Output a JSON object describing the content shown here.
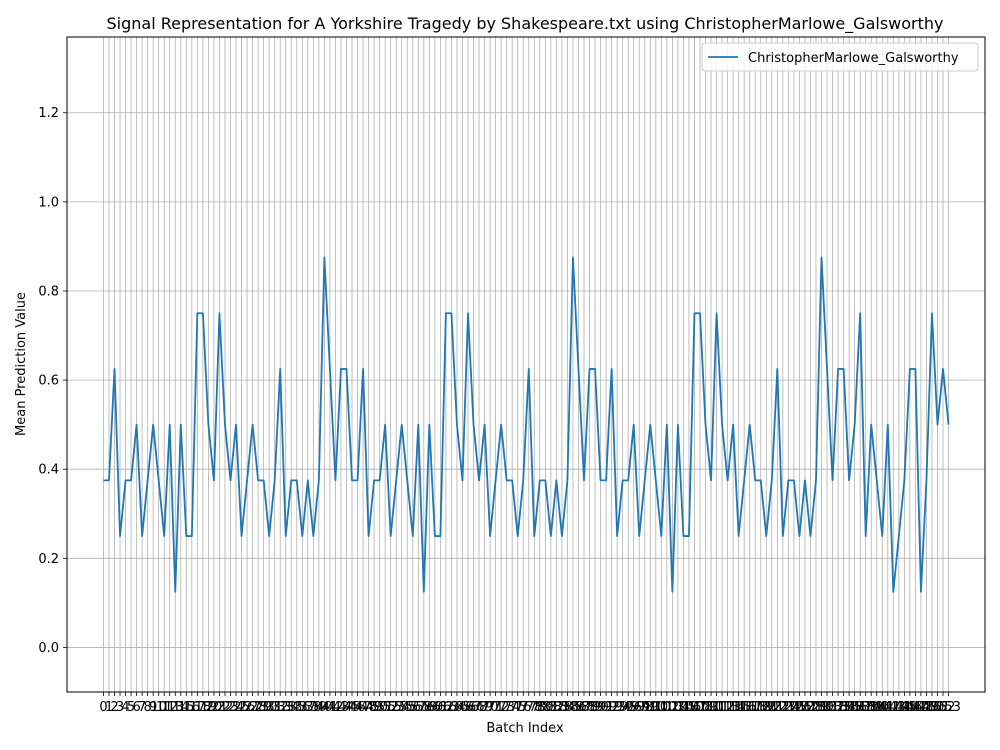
{
  "chart_data": {
    "type": "line",
    "title": "Signal Representation for A Yorkshire Tragedy by Shakespeare.txt using ChristopherMarlowe_Galsworthy",
    "xlabel": "Batch Index",
    "ylabel": "Mean Prediction Value",
    "xlim": [
      -6.6,
      159.6
    ],
    "ylim": [
      -0.1,
      1.37
    ],
    "yticks": [
      0.0,
      0.2,
      0.4,
      0.6,
      0.8,
      1.0,
      1.2
    ],
    "ytick_labels": [
      "0.0",
      "0.2",
      "0.4",
      "0.6",
      "0.8",
      "1.0",
      "1.2"
    ],
    "grid": true,
    "legend_position": "top-right",
    "series": [
      {
        "name": "ChristopherMarlowe_Galsworthy",
        "color": "#1f77b4",
        "values": [
          0.375,
          0.375,
          0.625,
          0.25,
          0.375,
          0.375,
          0.5,
          0.25,
          0.375,
          0.5,
          0.375,
          0.25,
          0.5,
          0.125,
          0.5,
          0.25,
          0.25,
          0.75,
          0.75,
          0.5,
          0.375,
          0.75,
          0.5,
          0.375,
          0.5,
          0.25,
          0.375,
          0.5,
          0.375,
          0.375,
          0.25,
          0.375,
          0.625,
          0.25,
          0.375,
          0.375,
          0.25,
          0.375,
          0.25,
          0.375,
          0.875,
          0.625,
          0.375,
          0.625,
          0.625,
          0.375,
          0.375,
          0.625,
          0.25,
          0.375,
          0.375,
          0.5,
          0.25,
          0.375,
          0.5,
          0.375,
          0.25,
          0.5,
          0.125,
          0.5,
          0.25,
          0.25,
          0.75,
          0.75,
          0.5,
          0.375,
          0.75,
          0.5,
          0.375,
          0.5,
          0.25,
          0.375,
          0.5,
          0.375,
          0.375,
          0.25,
          0.375,
          0.625,
          0.25,
          0.375,
          0.375,
          0.25,
          0.375,
          0.25,
          0.375,
          0.875,
          0.625,
          0.375,
          0.625,
          0.625,
          0.375,
          0.375,
          0.625,
          0.25,
          0.375,
          0.375,
          0.5,
          0.25,
          0.375,
          0.5,
          0.375,
          0.25,
          0.5,
          0.125,
          0.5,
          0.25,
          0.25,
          0.75,
          0.75,
          0.5,
          0.375,
          0.75,
          0.5,
          0.375,
          0.5,
          0.25,
          0.375,
          0.5,
          0.375,
          0.375,
          0.25,
          0.375,
          0.625,
          0.25,
          0.375,
          0.375,
          0.25,
          0.375,
          0.25,
          0.375,
          0.875,
          0.625,
          0.375,
          0.625,
          0.625,
          0.375,
          0.5,
          0.75,
          0.25,
          0.5,
          0.375,
          0.25,
          0.5,
          0.125,
          0.25,
          0.375,
          0.625,
          0.625,
          0.125,
          0.375,
          0.75,
          0.5,
          0.625,
          0.5
        ]
      }
    ]
  }
}
